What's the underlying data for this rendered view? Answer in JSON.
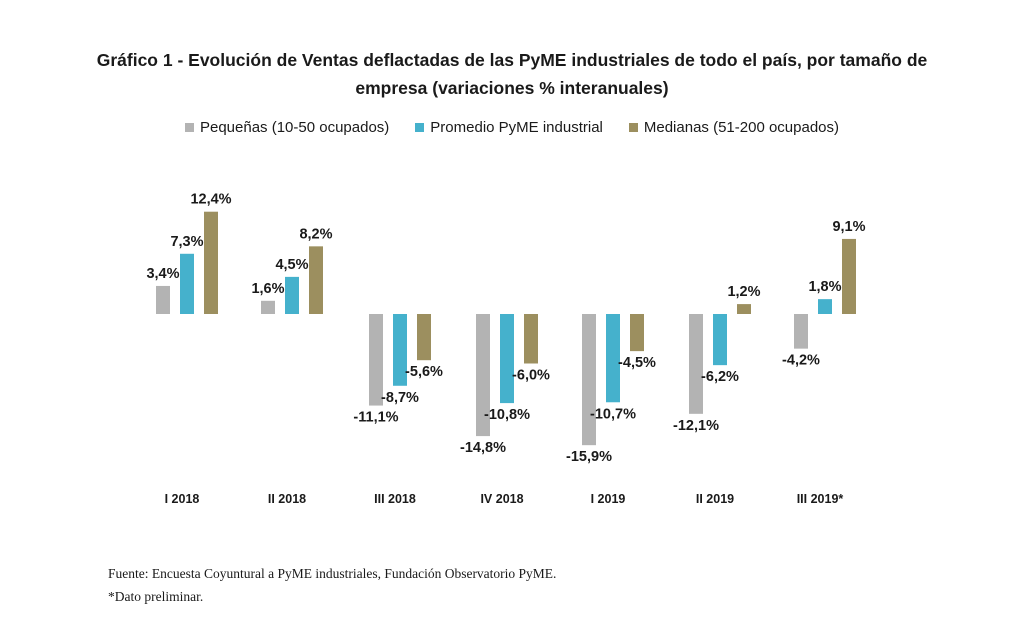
{
  "chart_data": {
    "type": "bar",
    "title_line1": "Gráfico 1 - Evolución de Ventas deflactadas de las PyME industriales de todo el país, por tamaño de",
    "title_line2": "empresa (variaciones % interanuales)",
    "categories": [
      "I 2018",
      "II 2018",
      "III 2018",
      "IV 2018",
      "I 2019",
      "II 2019",
      "III 2019*"
    ],
    "series": [
      {
        "name": "Pequeñas (10-50 ocupados)",
        "color": "#b3b3b3",
        "values": [
          3.4,
          1.6,
          -11.1,
          -14.8,
          -15.9,
          -12.1,
          -4.2
        ],
        "labels": [
          "3,4%",
          "1,6%",
          "-11,1%",
          "-14,8%",
          "-15,9%",
          "-12,1%",
          "-4,2%"
        ]
      },
      {
        "name": "Promedio PyME industrial",
        "color": "#45b1cc",
        "values": [
          7.3,
          4.5,
          -8.7,
          -10.8,
          -10.7,
          -6.2,
          1.8
        ],
        "labels": [
          "7,3%",
          "4,5%",
          "-8,7%",
          "-10,8%",
          "-10,7%",
          "-6,2%",
          "1,8%"
        ]
      },
      {
        "name": "Medianas (51-200 ocupados)",
        "color": "#9c8f5f",
        "values": [
          12.4,
          8.2,
          -5.6,
          -6.0,
          -4.5,
          1.2,
          9.1
        ],
        "labels": [
          "12,4%",
          "8,2%",
          "-5,6%",
          "-6,0%",
          "-4,5%",
          "1,2%",
          "9,1%"
        ]
      }
    ],
    "legend_position": "top",
    "grid": false
  },
  "footer": {
    "source": "Fuente: Encuesta Coyuntural a PyME industriales, Fundación Observatorio PyME.",
    "note": "*Dato preliminar."
  }
}
